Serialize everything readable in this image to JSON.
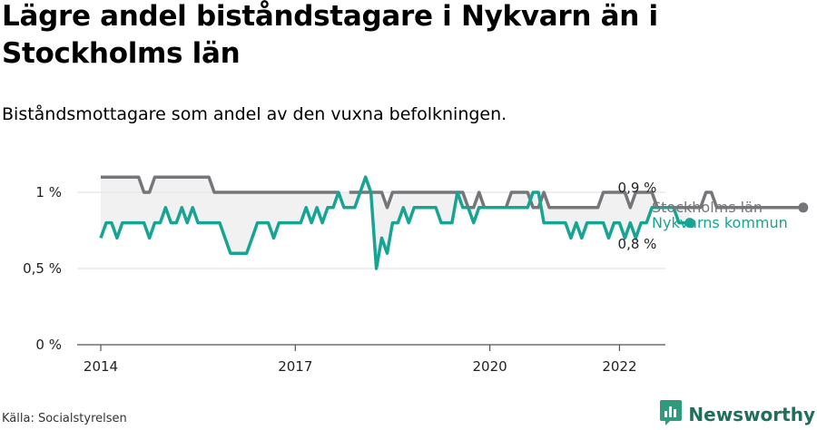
{
  "title": "Lägre andel biståndstagare i Nykvarn än i Stockholms län",
  "subtitle": "Biståndsmottagare som andel av den vuxna befolkningen.",
  "source": "Källa: Socialstyrelsen",
  "brand": {
    "name": "Newsworthy",
    "logo_icon": "bar-chart-logo-icon"
  },
  "colors": {
    "stockholm": "#76767a",
    "nykvarn": "#17a493",
    "fill": "#e6e6e6",
    "grid": "#dddddd",
    "brand": "#1f6f5c"
  },
  "chart_data": {
    "type": "line",
    "xlabel": "",
    "ylabel": "",
    "y_ticks": [
      {
        "value": 0,
        "label": "0 %"
      },
      {
        "value": 0.5,
        "label": "0,5 %"
      },
      {
        "value": 1,
        "label": "1 %"
      }
    ],
    "x_ticks": [
      {
        "value": 2014,
        "label": "2014"
      },
      {
        "value": 2017,
        "label": "2017"
      },
      {
        "value": 2020,
        "label": "2020"
      },
      {
        "value": 2022,
        "label": "2022"
      }
    ],
    "xlim": [
      2014,
      2022.3
    ],
    "ylim": [
      0,
      1.15
    ],
    "grid": true,
    "end_labels": {
      "stockholm": "0,9 %",
      "nykvarn": "0,8 %"
    },
    "series": [
      {
        "key": "stockholm",
        "name": "Stockholms län",
        "color": "#76767a",
        "x_start": 2014,
        "step_months": 1,
        "values": [
          1.1,
          1.1,
          1.1,
          1.1,
          1.1,
          1.1,
          1.1,
          1.1,
          1.0,
          1.0,
          1.1,
          1.1,
          1.1,
          1.1,
          1.1,
          1.1,
          1.1,
          1.1,
          1.1,
          1.1,
          1.1,
          1.0,
          1.0,
          1.0,
          1.0,
          1.0,
          1.0,
          1.0,
          1.0,
          1.0,
          1.0,
          1.0,
          1.0,
          1.0,
          1.0,
          1.0,
          1.0,
          1.0,
          1.0,
          1.0,
          1.0,
          1.0,
          1.0,
          1.0,
          1.0,
          null,
          1.0,
          1.0,
          1.0,
          1.0,
          1.0,
          1.0,
          1.0,
          0.9,
          1.0,
          1.0,
          1.0,
          1.0,
          1.0,
          1.0,
          1.0,
          1.0,
          1.0,
          1.0,
          1.0,
          1.0,
          1.0,
          1.0,
          0.9,
          0.9,
          1.0,
          0.9,
          0.9,
          0.9,
          0.9,
          0.9,
          1.0,
          1.0,
          1.0,
          1.0,
          0.9,
          0.9,
          1.0,
          0.9,
          0.9,
          0.9,
          0.9,
          0.9,
          0.9,
          0.9,
          0.9,
          0.9,
          0.9,
          1.0,
          1.0,
          1.0,
          1.0,
          1.0,
          0.9,
          1.0,
          1.0,
          1.0,
          1.0,
          0.9,
          0.9,
          0.9,
          0.9,
          0.9,
          0.9,
          0.9,
          0.9,
          0.9,
          1.0,
          1.0,
          0.9,
          0.9,
          0.9,
          0.9,
          0.9,
          0.9,
          0.9,
          0.9,
          0.9,
          0.9,
          0.9,
          0.9,
          0.9,
          0.9,
          0.9,
          0.9,
          0.9
        ]
      },
      {
        "key": "nykvarn",
        "name": "Nykvarns kommun",
        "color": "#17a493",
        "x_start": 2014,
        "step_months": 1,
        "values": [
          0.7,
          0.8,
          0.8,
          0.7,
          0.8,
          0.8,
          0.8,
          0.8,
          0.8,
          0.7,
          0.8,
          0.8,
          0.9,
          0.8,
          0.8,
          0.9,
          0.8,
          0.9,
          0.8,
          0.8,
          0.8,
          0.8,
          0.8,
          0.7,
          0.6,
          0.6,
          0.6,
          0.6,
          0.7,
          0.8,
          0.8,
          0.8,
          0.7,
          0.8,
          0.8,
          0.8,
          0.8,
          0.8,
          0.9,
          0.8,
          0.9,
          0.8,
          0.9,
          0.9,
          1.0,
          0.9,
          0.9,
          0.9,
          1.0,
          1.1,
          1.0,
          0.5,
          0.7,
          0.6,
          0.8,
          0.8,
          0.9,
          0.8,
          0.9,
          0.9,
          0.9,
          0.9,
          0.9,
          0.8,
          0.8,
          0.8,
          1.0,
          0.9,
          0.9,
          0.8,
          0.9,
          0.9,
          0.9,
          0.9,
          0.9,
          0.9,
          0.9,
          0.9,
          0.9,
          0.9,
          1.0,
          1.0,
          0.8,
          0.8,
          0.8,
          0.8,
          0.8,
          0.7,
          0.8,
          0.7,
          0.8,
          0.8,
          0.8,
          0.8,
          0.7,
          0.8,
          0.8,
          0.7,
          0.8,
          0.7,
          0.8,
          0.8,
          0.9,
          0.9,
          0.9,
          0.9,
          0.9,
          0.8,
          0.8,
          0.8
        ]
      }
    ]
  }
}
